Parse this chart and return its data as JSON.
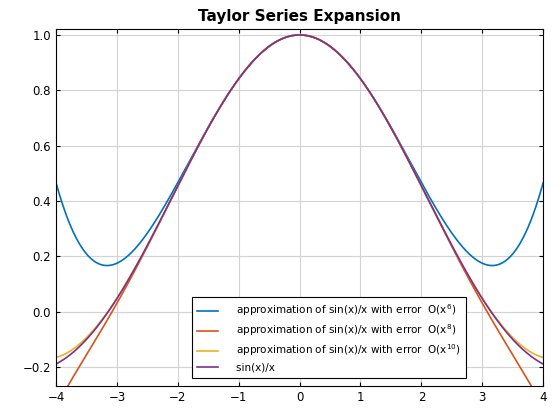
{
  "title": "Taylor Series Expansion",
  "xlim": [
    -4.0,
    4.0
  ],
  "ylim": [
    -0.27,
    1.02
  ],
  "xticks": [
    -4,
    -3,
    -2,
    -1,
    0,
    1,
    2,
    3,
    4
  ],
  "yticks": [
    -0.2,
    0.0,
    0.2,
    0.4,
    0.6,
    0.8,
    1.0
  ],
  "color_o6": "#0072BD",
  "color_o8": "#D95319",
  "color_o10": "#EDB120",
  "color_sinc": "#7E2F8E",
  "label_o6": "    approximation of sin(x)/x with error  O(x$^6$)",
  "label_o8": "    approximation of sin(x)/x with error  O(x$^8$)",
  "label_o10": "    approximation of sin(x)/x with error  O(x$^{10}$)",
  "label_sinc": "    sin(x)/x",
  "linewidth": 1.2,
  "grid_color": "#d3d3d3",
  "background_color": "#ffffff",
  "title_fontsize": 11,
  "legend_fontsize": 7.5
}
